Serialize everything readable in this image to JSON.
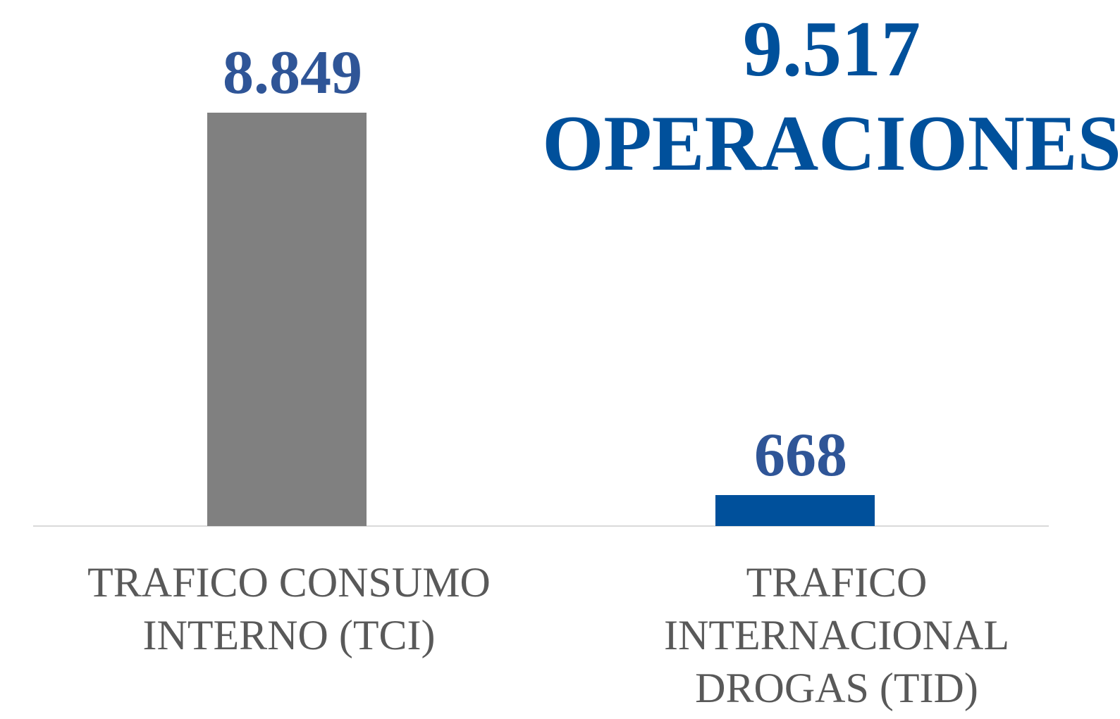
{
  "chart_data": {
    "type": "bar",
    "categories": [
      "TRAFICO CONSUMO INTERNO (TCI)",
      "TRAFICO INTERNACIONAL DROGAS (TID)"
    ],
    "values": [
      8849,
      668
    ],
    "value_labels": [
      "8.849",
      "668"
    ],
    "colors": [
      "#808080",
      "#00509b"
    ],
    "annotations": [
      "9.517",
      "OPERACIONES"
    ]
  }
}
